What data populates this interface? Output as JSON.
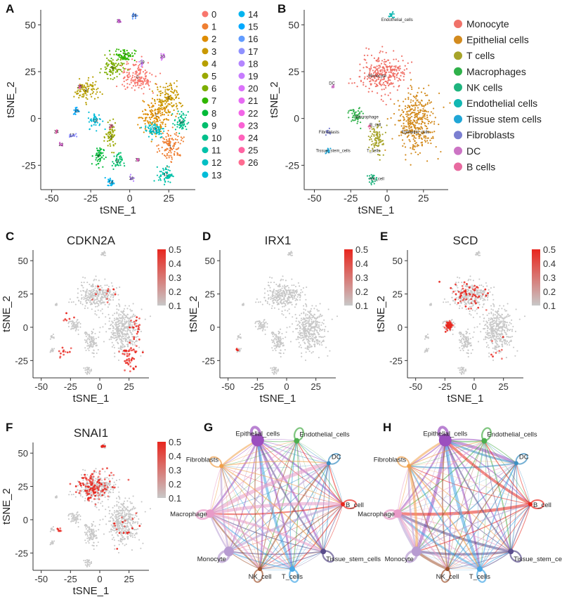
{
  "colors": {
    "cell_gray": "#c8c8c8",
    "expr_red": "#e8261e",
    "axis": "#333333",
    "clusters": [
      "#f8766d",
      "#ef7f32",
      "#de8c00",
      "#c99800",
      "#b79f00",
      "#9aa800",
      "#7cae00",
      "#2fb600",
      "#00ba38",
      "#00be6c",
      "#00c08b",
      "#00c1aa",
      "#00bfc4",
      "#00bcd8",
      "#00b4ef",
      "#00a9ff",
      "#619cff",
      "#8f91ff",
      "#b385ff",
      "#c77cff",
      "#db72fb",
      "#e76bf3",
      "#f265e7",
      "#fa62d4",
      "#ff62bc",
      "#ff65a3",
      "#ff6c91"
    ],
    "cell_types": [
      "#f07269",
      "#d38b1e",
      "#a7a42a",
      "#2fb14a",
      "#1fb47e",
      "#12b7b2",
      "#20a6d6",
      "#7b7fd1",
      "#cc74c4",
      "#e86aa0"
    ]
  },
  "panel_labels": {
    "A": "A",
    "B": "B",
    "C": "C",
    "D": "D",
    "E": "E",
    "F": "F",
    "G": "G",
    "H": "H"
  },
  "chart_data": [
    {
      "id": "A",
      "type": "scatter",
      "title": "",
      "xlabel": "tSNE_1",
      "ylabel": "tSNE_2",
      "xlim": [
        -57,
        42
      ],
      "ylim": [
        -38,
        58
      ],
      "xticks": [
        -50,
        -25,
        0,
        25
      ],
      "yticks": [
        -25,
        0,
        25,
        50
      ],
      "legend": {
        "placement": "right",
        "entries": [
          "0",
          "1",
          "2",
          "3",
          "4",
          "5",
          "6",
          "7",
          "8",
          "9",
          "10",
          "11",
          "12",
          "13",
          "14",
          "15",
          "16",
          "17",
          "18",
          "19",
          "20",
          "21",
          "22",
          "23",
          "24",
          "25",
          "26"
        ]
      },
      "clusters": [
        {
          "label": "0",
          "center": [
            5,
            22
          ],
          "spread": [
            9,
            7
          ],
          "n": 160
        },
        {
          "label": "1",
          "center": [
            26,
            -15
          ],
          "spread": [
            6,
            8
          ],
          "n": 110
        },
        {
          "label": "2",
          "center": [
            17,
            2
          ],
          "spread": [
            9,
            8
          ],
          "n": 150
        },
        {
          "label": "3",
          "center": [
            25,
            11
          ],
          "spread": [
            8,
            7
          ],
          "n": 130
        },
        {
          "label": "4",
          "center": [
            -28,
            15
          ],
          "spread": [
            7,
            5
          ],
          "n": 90
        },
        {
          "label": "5",
          "center": [
            -12,
            -10
          ],
          "spread": [
            3,
            6
          ],
          "n": 60
        },
        {
          "label": "6",
          "center": [
            -11,
            27
          ],
          "spread": [
            6,
            5
          ],
          "n": 90
        },
        {
          "label": "7",
          "center": [
            -3,
            34
          ],
          "spread": [
            6,
            3
          ],
          "n": 70
        },
        {
          "label": "8",
          "center": [
            -20,
            -20
          ],
          "spread": [
            3,
            5
          ],
          "n": 50
        },
        {
          "label": "9",
          "center": [
            -8,
            -23
          ],
          "spread": [
            3,
            4
          ],
          "n": 40
        },
        {
          "label": "10",
          "center": [
            33,
            -2
          ],
          "spread": [
            4,
            5
          ],
          "n": 60
        },
        {
          "label": "11",
          "center": [
            23,
            -30
          ],
          "spread": [
            4,
            4
          ],
          "n": 60
        },
        {
          "label": "12",
          "center": [
            16,
            -6
          ],
          "spread": [
            6,
            4
          ],
          "n": 70
        },
        {
          "label": "13",
          "center": [
            -22,
            -1
          ],
          "spread": [
            4,
            4
          ],
          "n": 45
        },
        {
          "label": "14",
          "center": [
            -12,
            -34
          ],
          "spread": [
            2,
            2
          ],
          "n": 25
        },
        {
          "label": "15",
          "center": [
            -34,
            4
          ],
          "spread": [
            2,
            2
          ],
          "n": 18
        },
        {
          "label": "16",
          "center": [
            3,
            55
          ],
          "spread": [
            2,
            1.5
          ],
          "n": 18
        },
        {
          "label": "17",
          "center": [
            -37,
            -9
          ],
          "spread": [
            2,
            1.5
          ],
          "n": 15
        },
        {
          "label": "18",
          "center": [
            1,
            -32
          ],
          "spread": [
            1.5,
            1.5
          ],
          "n": 12
        },
        {
          "label": "19",
          "center": [
            8,
            30
          ],
          "spread": [
            1.5,
            1.5
          ],
          "n": 10
        },
        {
          "label": "20",
          "center": [
            21,
            33
          ],
          "spread": [
            1.5,
            1.5
          ],
          "n": 10
        },
        {
          "label": "21",
          "center": [
            -7,
            52
          ],
          "spread": [
            1.5,
            1
          ],
          "n": 10
        },
        {
          "label": "22",
          "center": [
            -44,
            -14
          ],
          "spread": [
            1,
            1
          ],
          "n": 8
        },
        {
          "label": "23",
          "center": [
            5,
            -22
          ],
          "spread": [
            1,
            1
          ],
          "n": 8
        },
        {
          "label": "24",
          "center": [
            -47,
            -7
          ],
          "spread": [
            1,
            1
          ],
          "n": 8
        },
        {
          "label": "25",
          "center": [
            -32,
            17
          ],
          "spread": [
            1,
            1
          ],
          "n": 8
        },
        {
          "label": "26",
          "center": [
            -12,
            -4
          ],
          "spread": [
            1,
            1
          ],
          "n": 8
        }
      ]
    },
    {
      "id": "B",
      "type": "scatter",
      "title": "",
      "xlabel": "tSNE_1",
      "ylabel": "tSNE_2",
      "xlim": [
        -57,
        42
      ],
      "ylim": [
        -38,
        58
      ],
      "xticks": [
        -50,
        -25,
        0,
        25
      ],
      "yticks": [
        -25,
        0,
        25,
        50
      ],
      "legend": {
        "placement": "right",
        "entries": [
          "Monocyte",
          "Epithelial cells",
          "T cells",
          "Macrophages",
          "NK cells",
          "Endothelial cells",
          "Tissue stem cells",
          "Fibroblasts",
          "DC",
          "B cells"
        ]
      },
      "annotations": [
        {
          "text": "Endothelial_cells",
          "x": -4,
          "y": 52
        },
        {
          "text": "Monocyte",
          "x": -13,
          "y": 22
        },
        {
          "text": "DC",
          "x": -40,
          "y": 18
        },
        {
          "text": "Macrophage",
          "x": -22,
          "y": 0
        },
        {
          "text": "B_cell",
          "x": -12,
          "y": -4
        },
        {
          "text": "Epithelial_cells",
          "x": 10,
          "y": -8
        },
        {
          "text": "Fibroblasts",
          "x": -47,
          "y": -8
        },
        {
          "text": "T_cells",
          "x": -14,
          "y": -18
        },
        {
          "text": "Tissue_stem_cells",
          "x": -49,
          "y": -18
        },
        {
          "text": "NK_cell",
          "x": -12,
          "y": -33
        }
      ],
      "groups": [
        {
          "label": "Monocyte",
          "center": [
            -3,
            24
          ],
          "spread": [
            14,
            9
          ],
          "n": 300
        },
        {
          "label": "Epithelial cells",
          "center": [
            20,
            -2
          ],
          "spread": [
            12,
            15
          ],
          "n": 380
        },
        {
          "label": "T cells",
          "center": [
            -7,
            -12
          ],
          "spread": [
            5,
            8
          ],
          "n": 90
        },
        {
          "label": "Macrophages",
          "center": [
            -22,
            2
          ],
          "spread": [
            4,
            4
          ],
          "n": 50
        },
        {
          "label": "NK cells",
          "center": [
            -10,
            -32
          ],
          "spread": [
            3,
            3
          ],
          "n": 25
        },
        {
          "label": "Endothelial cells",
          "center": [
            3,
            55
          ],
          "spread": [
            2,
            1.5
          ],
          "n": 18
        },
        {
          "label": "Tissue stem cells",
          "center": [
            -41,
            -17
          ],
          "spread": [
            2,
            2
          ],
          "n": 12
        },
        {
          "label": "Fibroblasts",
          "center": [
            -41,
            -8
          ],
          "spread": [
            2,
            1.5
          ],
          "n": 12
        },
        {
          "label": "DC",
          "center": [
            -37,
            17
          ],
          "spread": [
            1,
            1
          ],
          "n": 8
        },
        {
          "label": "B cells",
          "center": [
            -12,
            -4
          ],
          "spread": [
            1,
            1
          ],
          "n": 8
        }
      ]
    },
    {
      "id": "C",
      "type": "scatter",
      "title": "CDKN2A",
      "xlabel": "tSNE_1",
      "ylabel": "tSNE_2",
      "xlim": [
        -57,
        42
      ],
      "ylim": [
        -38,
        58
      ],
      "xticks": [
        -50,
        -25,
        0,
        25
      ],
      "yticks": [
        -25,
        0,
        25,
        50
      ],
      "colorbar": {
        "min": 0.1,
        "max": 0.5,
        "ticks": [
          "0.5",
          "0.4",
          "0.3",
          "0.2",
          "0.1"
        ]
      },
      "high_regions": [
        {
          "center": [
            25,
            -20
          ],
          "spread": [
            7,
            10
          ],
          "n": 45
        },
        {
          "center": [
            30,
            0
          ],
          "spread": [
            6,
            8
          ],
          "n": 20
        },
        {
          "center": [
            -30,
            -20
          ],
          "spread": [
            6,
            5
          ],
          "n": 12
        },
        {
          "center": [
            5,
            25
          ],
          "spread": [
            12,
            8
          ],
          "n": 12
        },
        {
          "center": [
            -28,
            8
          ],
          "spread": [
            4,
            4
          ],
          "n": 6
        }
      ]
    },
    {
      "id": "D",
      "type": "scatter",
      "title": "IRX1",
      "xlabel": "tSNE_1",
      "ylabel": "tSNE_2",
      "xlim": [
        -57,
        42
      ],
      "ylim": [
        -38,
        58
      ],
      "xticks": [
        -50,
        -25,
        0,
        25
      ],
      "yticks": [
        -25,
        0,
        25,
        50
      ],
      "colorbar": {
        "min": 0.1,
        "max": 0.5,
        "ticks": [
          "0.5",
          "0.4",
          "0.3",
          "0.2",
          "0.1"
        ]
      },
      "high_regions": [
        {
          "center": [
            -42,
            -17
          ],
          "spread": [
            1.2,
            1.2
          ],
          "n": 5
        }
      ]
    },
    {
      "id": "E",
      "type": "scatter",
      "title": "SCD",
      "xlabel": "tSNE_1",
      "ylabel": "tSNE_2",
      "xlim": [
        -57,
        42
      ],
      "ylim": [
        -38,
        58
      ],
      "xticks": [
        -50,
        -25,
        0,
        25
      ],
      "yticks": [
        -25,
        0,
        25,
        50
      ],
      "colorbar": {
        "min": 0.1,
        "max": 0.5,
        "ticks": [
          "0.5",
          "0.4",
          "0.3",
          "0.2",
          "0.1"
        ]
      },
      "high_regions": [
        {
          "center": [
            -22,
            1
          ],
          "spread": [
            3,
            3
          ],
          "n": 40
        },
        {
          "center": [
            -5,
            25
          ],
          "spread": [
            14,
            9
          ],
          "n": 60
        },
        {
          "center": [
            20,
            -15
          ],
          "spread": [
            10,
            10
          ],
          "n": 8
        }
      ]
    },
    {
      "id": "F",
      "type": "scatter",
      "title": "SNAI1",
      "xlabel": "tSNE_1",
      "ylabel": "tSNE_2",
      "xlim": [
        -57,
        42
      ],
      "ylim": [
        -38,
        58
      ],
      "xticks": [
        -50,
        -25,
        0,
        25
      ],
      "yticks": [
        -25,
        0,
        25,
        50
      ],
      "colorbar": {
        "min": 0.1,
        "max": 0.5,
        "ticks": [
          "0.5",
          "0.4",
          "0.3",
          "0.2",
          "0.1"
        ]
      },
      "high_regions": [
        {
          "center": [
            -5,
            25
          ],
          "spread": [
            14,
            10
          ],
          "n": 120
        },
        {
          "center": [
            3,
            55
          ],
          "spread": [
            2,
            1.5
          ],
          "n": 8
        },
        {
          "center": [
            -35,
            -8
          ],
          "spread": [
            3,
            2
          ],
          "n": 8
        },
        {
          "center": [
            20,
            -5
          ],
          "spread": [
            10,
            12
          ],
          "n": 18
        }
      ]
    },
    {
      "id": "G",
      "type": "network",
      "title": "",
      "nodes": [
        {
          "name": "Epithelial_cells",
          "angle": -106,
          "size": 9,
          "color": "#9b4fbf"
        },
        {
          "name": "Endothelial_cells",
          "angle": -72,
          "size": 4,
          "color": "#4cae4c"
        },
        {
          "name": "DC",
          "angle": -38,
          "size": 3,
          "color": "#3a8fc2"
        },
        {
          "name": "B_cell",
          "angle": 0,
          "size": 3,
          "color": "#e8261e"
        },
        {
          "name": "Tissue_stem_cells",
          "angle": 45,
          "size": 4,
          "color": "#5a4d8c"
        },
        {
          "name": "T_cells",
          "angle": 76,
          "size": 4,
          "color": "#47a8e5"
        },
        {
          "name": "NK_cell",
          "angle": 104,
          "size": 3,
          "color": "#a0522d"
        },
        {
          "name": "Monocyte",
          "angle": 135,
          "size": 7,
          "color": "#b79bd1"
        },
        {
          "name": "Macrophage",
          "angle": 172,
          "size": 6,
          "color": "#e89ac7"
        },
        {
          "name": "Fibroblasts",
          "angle": -145,
          "size": 3,
          "color": "#f0a04a"
        }
      ]
    },
    {
      "id": "H",
      "type": "network",
      "title": "",
      "nodes": [
        {
          "name": "Epithelial_cells",
          "angle": -106,
          "size": 9,
          "color": "#9b4fbf"
        },
        {
          "name": "Endothelial_cells",
          "angle": -72,
          "size": 4,
          "color": "#4cae4c"
        },
        {
          "name": "DC",
          "angle": -38,
          "size": 3,
          "color": "#3a8fc2"
        },
        {
          "name": "B_cell",
          "angle": 0,
          "size": 3,
          "color": "#e8261e"
        },
        {
          "name": "Tissue_stem_cells",
          "angle": 45,
          "size": 4,
          "color": "#5a4d8c"
        },
        {
          "name": "T_cells",
          "angle": 76,
          "size": 4,
          "color": "#47a8e5"
        },
        {
          "name": "NK_cell",
          "angle": 104,
          "size": 3,
          "color": "#a0522d"
        },
        {
          "name": "Monocyte",
          "angle": 135,
          "size": 7,
          "color": "#b79bd1"
        },
        {
          "name": "Macrophage",
          "angle": 172,
          "size": 6,
          "color": "#e89ac7"
        },
        {
          "name": "Fibroblasts",
          "angle": -145,
          "size": 3,
          "color": "#f0a04a"
        }
      ]
    }
  ]
}
